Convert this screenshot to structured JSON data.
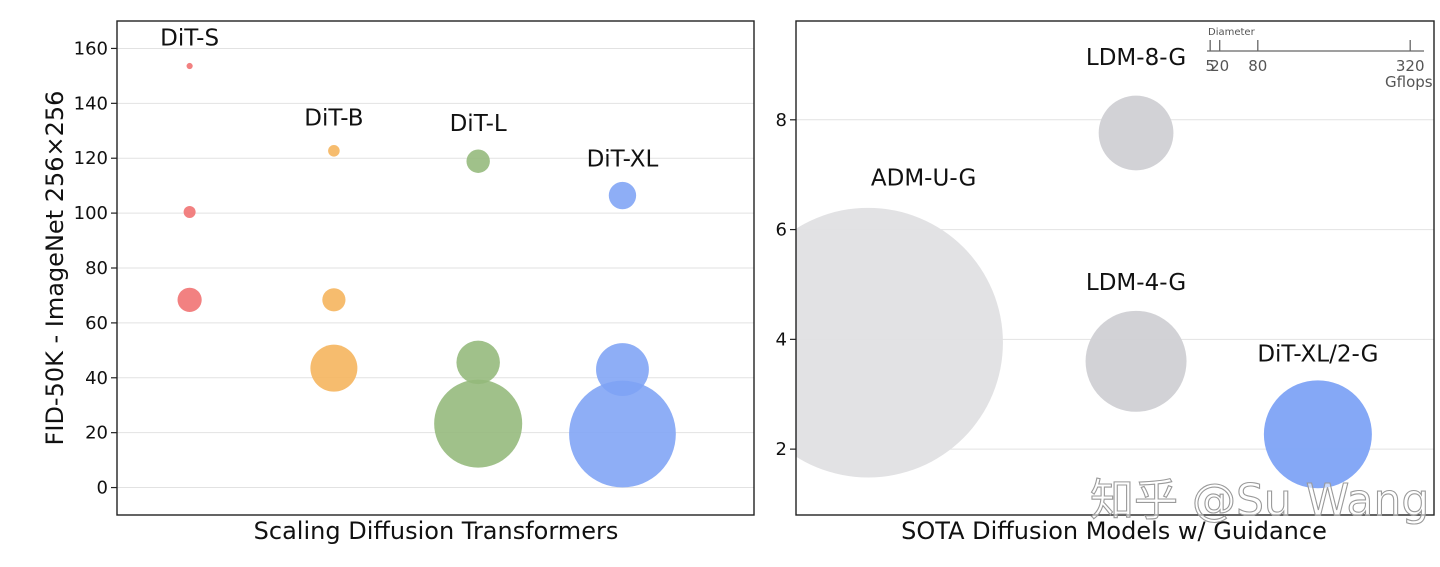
{
  "chart_data": [
    {
      "type": "scatter",
      "subtype": "bubble",
      "xlabel": "Scaling Diffusion Transformers",
      "ylabel": "FID-50K - ImageNet 256×256",
      "ylim": [
        -10,
        170
      ],
      "yticks": [
        0,
        20,
        40,
        60,
        80,
        100,
        120,
        140,
        160
      ],
      "grid": true,
      "categories": [
        "DiT-S",
        "DiT-B",
        "DiT-L",
        "DiT-XL"
      ],
      "series": [
        {
          "name": "DiT-S",
          "color": "#f07070",
          "label_fid": 161,
          "points": [
            {
              "fid": 153.6,
              "gflops": 0.4
            },
            {
              "fid": 100.4,
              "gflops": 1.5
            },
            {
              "fid": 68.4,
              "gflops": 6.1
            }
          ]
        },
        {
          "name": "DiT-B",
          "color": "#f5b35a",
          "label_fid": 132,
          "points": [
            {
              "fid": 122.7,
              "gflops": 1.4
            },
            {
              "fid": 68.4,
              "gflops": 5.6
            },
            {
              "fid": 43.5,
              "gflops": 23.0
            }
          ]
        },
        {
          "name": "DiT-L",
          "color": "#93b87a",
          "label_fid": 130,
          "points": [
            {
              "fid": 118.9,
              "gflops": 5.7
            },
            {
              "fid": 45.6,
              "gflops": 19.7
            },
            {
              "fid": 23.3,
              "gflops": 80.7
            }
          ]
        },
        {
          "name": "DiT-XL",
          "color": "#7ea3f5",
          "label_fid": 117,
          "points": [
            {
              "fid": 106.4,
              "gflops": 7.8
            },
            {
              "fid": 43.0,
              "gflops": 29.1
            },
            {
              "fid": 19.5,
              "gflops": 118.6
            }
          ]
        }
      ]
    },
    {
      "type": "scatter",
      "subtype": "bubble",
      "xlabel": "SOTA Diffusion Models w/ Guidance",
      "ylim": [
        0.8,
        9.8
      ],
      "yticks": [
        2,
        4,
        6,
        8
      ],
      "grid": true,
      "points": [
        {
          "name": "ADM-U-G",
          "fid": 3.94,
          "gflops": 742,
          "color": "#e0e0e3",
          "label_fid": 6.8
        },
        {
          "name": "LDM-8-G",
          "fid": 7.76,
          "gflops": 57,
          "color": "#d0d0d4",
          "label_fid": 9.0
        },
        {
          "name": "LDM-4-G",
          "fid": 3.6,
          "gflops": 104,
          "color": "#d0d0d4",
          "label_fid": 4.9
        },
        {
          "name": "DiT-XL/2-G",
          "fid": 2.27,
          "gflops": 119,
          "color": "#7ea3f5",
          "label_fid": 3.6
        }
      ],
      "size_legend": {
        "title": "Diameter",
        "values": [
          5,
          20,
          80,
          320
        ],
        "unit": "Gflops"
      }
    }
  ],
  "watermark": "知乎 @Su Wang"
}
